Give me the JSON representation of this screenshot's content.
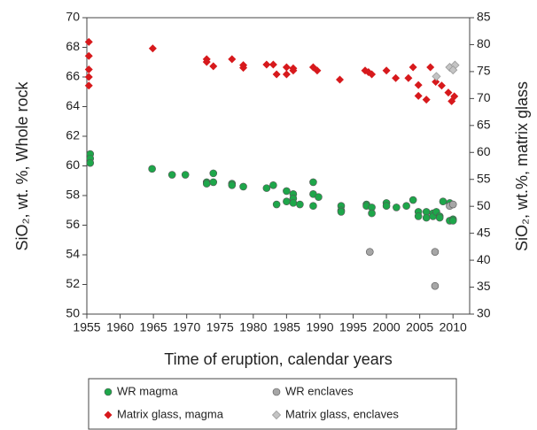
{
  "chart_data": {
    "type": "scatter",
    "xlabel": "Time of eruption, calendar years",
    "ylabel": "SiO₂, wt. %, Whole rock",
    "y2label": "SiO₂, wt.%, matrix glass",
    "xlim": [
      1955,
      2012.5
    ],
    "xticks": [
      1955,
      1960,
      1965,
      1970,
      1975,
      1980,
      1985,
      1990,
      1995,
      2000,
      2005,
      2010
    ],
    "ylim": [
      50,
      70
    ],
    "yticks": [
      50,
      52,
      54,
      56,
      58,
      60,
      62,
      64,
      66,
      68,
      70
    ],
    "y2lim": [
      30,
      85
    ],
    "y2ticks": [
      30,
      35,
      40,
      45,
      50,
      55,
      60,
      65,
      70,
      75,
      80,
      85
    ],
    "legend": "bottom",
    "series": [
      {
        "name": "WR magma",
        "color": "#1ea64a",
        "marker": "circle",
        "x": [
          1955.5,
          1955.5,
          1955.5,
          1964.8,
          1967.8,
          1969.8,
          1973,
          1973,
          1974,
          1974,
          1976.8,
          1976.8,
          1978.5,
          1982,
          1983,
          1983.5,
          1985,
          1985,
          1986,
          1986,
          1986,
          1987,
          1989,
          1989,
          1989,
          1989.8,
          1993.2,
          1993.2,
          1993.2,
          1997,
          1997,
          1997.8,
          1997.8,
          2000,
          2000,
          2001.5,
          2003,
          2004,
          2004.8,
          2004.8,
          2006,
          2006,
          2007,
          2007,
          2007.5,
          2008,
          2008,
          2008.5,
          2009.5,
          2009.5,
          2010,
          2010
        ],
        "values": [
          60.8,
          60.5,
          60.2,
          59.8,
          59.4,
          59.4,
          58.9,
          58.8,
          59.5,
          58.9,
          58.8,
          58.7,
          58.6,
          58.5,
          58.7,
          57.4,
          58.3,
          57.6,
          58.1,
          57.8,
          57.5,
          57.4,
          58.9,
          58.1,
          57.3,
          57.9,
          57.3,
          57.0,
          56.9,
          57.4,
          57.3,
          57.2,
          56.8,
          57.5,
          57.3,
          57.2,
          57.3,
          57.7,
          56.9,
          56.6,
          56.9,
          56.5,
          56.8,
          56.6,
          56.9,
          56.6,
          56.5,
          57.6,
          56.3,
          57.5,
          56.4,
          56.3
        ]
      },
      {
        "name": "WR enclaves",
        "color": "#a6a6a6",
        "marker": "circle",
        "x": [
          1997.5,
          2007.3,
          2007.3,
          2009.5,
          2010
        ],
        "values": [
          54.2,
          54.2,
          51.9,
          57.3,
          57.4
        ]
      },
      {
        "name": "Matrix glass, magma",
        "color": "#d7191c",
        "marker": "diamond",
        "axis": "y2",
        "x": [
          1955.3,
          1955.3,
          1955.3,
          1955.3,
          1955.3,
          1964.9,
          1973,
          1973,
          1974,
          1976.8,
          1978.5,
          1978.5,
          1982,
          1983,
          1983.5,
          1985,
          1985,
          1986,
          1986,
          1989,
          1989.6,
          1993,
          1996.8,
          1997.3,
          1997.8,
          2000,
          2001.4,
          2003.3,
          2004,
          2004.8,
          2004.8,
          2006,
          2006.6,
          2007.4,
          2008.3,
          2009.3,
          2009.8,
          2010.2
        ],
        "values": [
          80.5,
          77.9,
          75.4,
          74.0,
          72.4,
          79.3,
          77.3,
          76.8,
          76.0,
          77.3,
          76.2,
          75.7,
          76.3,
          76.3,
          74.5,
          75.8,
          74.5,
          75.6,
          75.2,
          75.8,
          75.2,
          73.5,
          75.2,
          74.9,
          74.5,
          75.2,
          73.8,
          73.8,
          75.8,
          72.5,
          70.5,
          69.8,
          75.8,
          73.1,
          72.4,
          71.1,
          69.5,
          70.4
        ]
      },
      {
        "name": "Matrix glass, enclaves",
        "color": "#c4c4c4",
        "marker": "diamond",
        "axis": "y2",
        "x": [
          2007.5,
          2009.5,
          2010.3,
          2010
        ],
        "values": [
          74.1,
          75.8,
          76.2,
          75.3
        ]
      }
    ]
  }
}
